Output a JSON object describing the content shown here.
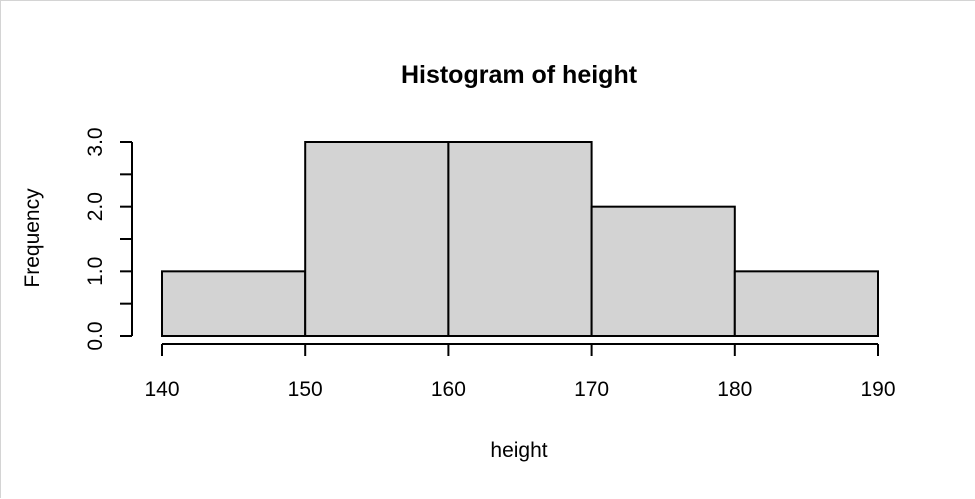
{
  "chart_data": {
    "type": "bar",
    "title": "Histogram of height",
    "xlabel": "height",
    "ylabel": "Frequency",
    "bin_edges": [
      140,
      150,
      160,
      170,
      180,
      190
    ],
    "values": [
      1,
      3,
      3,
      2,
      1
    ],
    "xticks": [
      "140",
      "150",
      "160",
      "170",
      "180",
      "190"
    ],
    "xtick_values": [
      140,
      150,
      160,
      170,
      180,
      190
    ],
    "yticks": [
      "0.0",
      "1.0",
      "2.0",
      "3.0"
    ],
    "ytick_values": [
      0,
      1,
      2,
      3
    ],
    "yminor_ticks": [
      0.5,
      1.5,
      2.5
    ],
    "xlim": [
      140,
      190
    ],
    "ylim": [
      0,
      3
    ],
    "grid": false,
    "bar_color": "#d3d3d3",
    "edge_color": "#000000"
  }
}
